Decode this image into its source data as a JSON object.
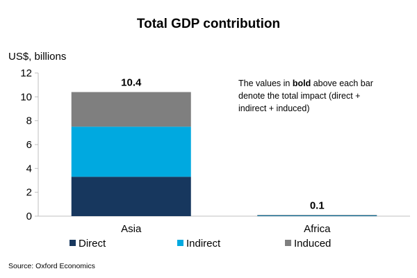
{
  "chart_data": {
    "type": "bar",
    "stacked": true,
    "title": "Total GDP contribution",
    "ylabel": "US$, billions",
    "ylim": [
      0,
      12
    ],
    "yticks": [
      0,
      2,
      4,
      6,
      8,
      10,
      12
    ],
    "categories": [
      "Asia",
      "Africa"
    ],
    "series": [
      {
        "name": "Direct",
        "values": [
          3.3,
          0.03
        ],
        "color": "#17375e"
      },
      {
        "name": "Indirect",
        "values": [
          4.2,
          0.04
        ],
        "color": "#00a9e0"
      },
      {
        "name": "Induced",
        "values": [
          2.9,
          0.03
        ],
        "color": "#7f7f7f"
      }
    ],
    "totals": [
      "10.4",
      "0.1"
    ],
    "annotation": {
      "line1_prefix": "The values in ",
      "line1_bold": "bold",
      "line1_suffix": " above each bar",
      "line2": "denote the total impact (direct +",
      "line3": "indirect + induced)"
    },
    "legend_position": "bottom",
    "grid": false,
    "axis_color": "#bfbfbf"
  },
  "source": "Source: Oxford Economics"
}
